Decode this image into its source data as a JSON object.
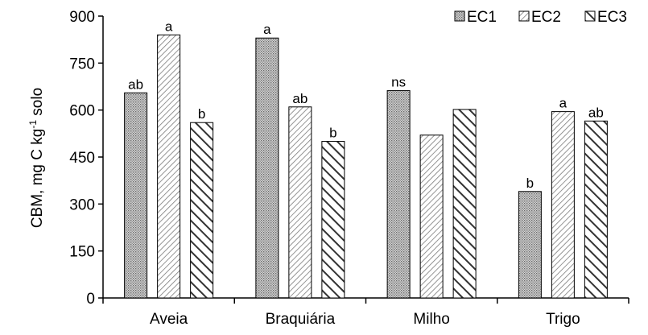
{
  "chart_data": {
    "type": "bar",
    "categories": [
      "Aveia",
      "Braquiária",
      "Milho",
      "Trigo"
    ],
    "series": [
      {
        "name": "EC1",
        "values": [
          655,
          830,
          662,
          340
        ],
        "letters": [
          "ab",
          "a",
          "ns",
          "b"
        ],
        "pattern": "dots"
      },
      {
        "name": "EC2",
        "values": [
          840,
          610,
          520,
          595
        ],
        "letters": [
          "a",
          "ab",
          "",
          "a"
        ],
        "pattern": "diag-fine"
      },
      {
        "name": "EC3",
        "values": [
          560,
          500,
          602,
          565
        ],
        "letters": [
          "b",
          "b",
          "",
          "ab"
        ],
        "pattern": "diag-bold"
      }
    ],
    "ylabel_main": "CBM, mg C kg",
    "ylabel_sup": "-1",
    "ylabel_end": " solo",
    "ylim": [
      0,
      900
    ],
    "yticks": [
      0,
      150,
      300,
      450,
      600,
      750,
      900
    ],
    "grid": false,
    "legend_position": "top-right"
  }
}
